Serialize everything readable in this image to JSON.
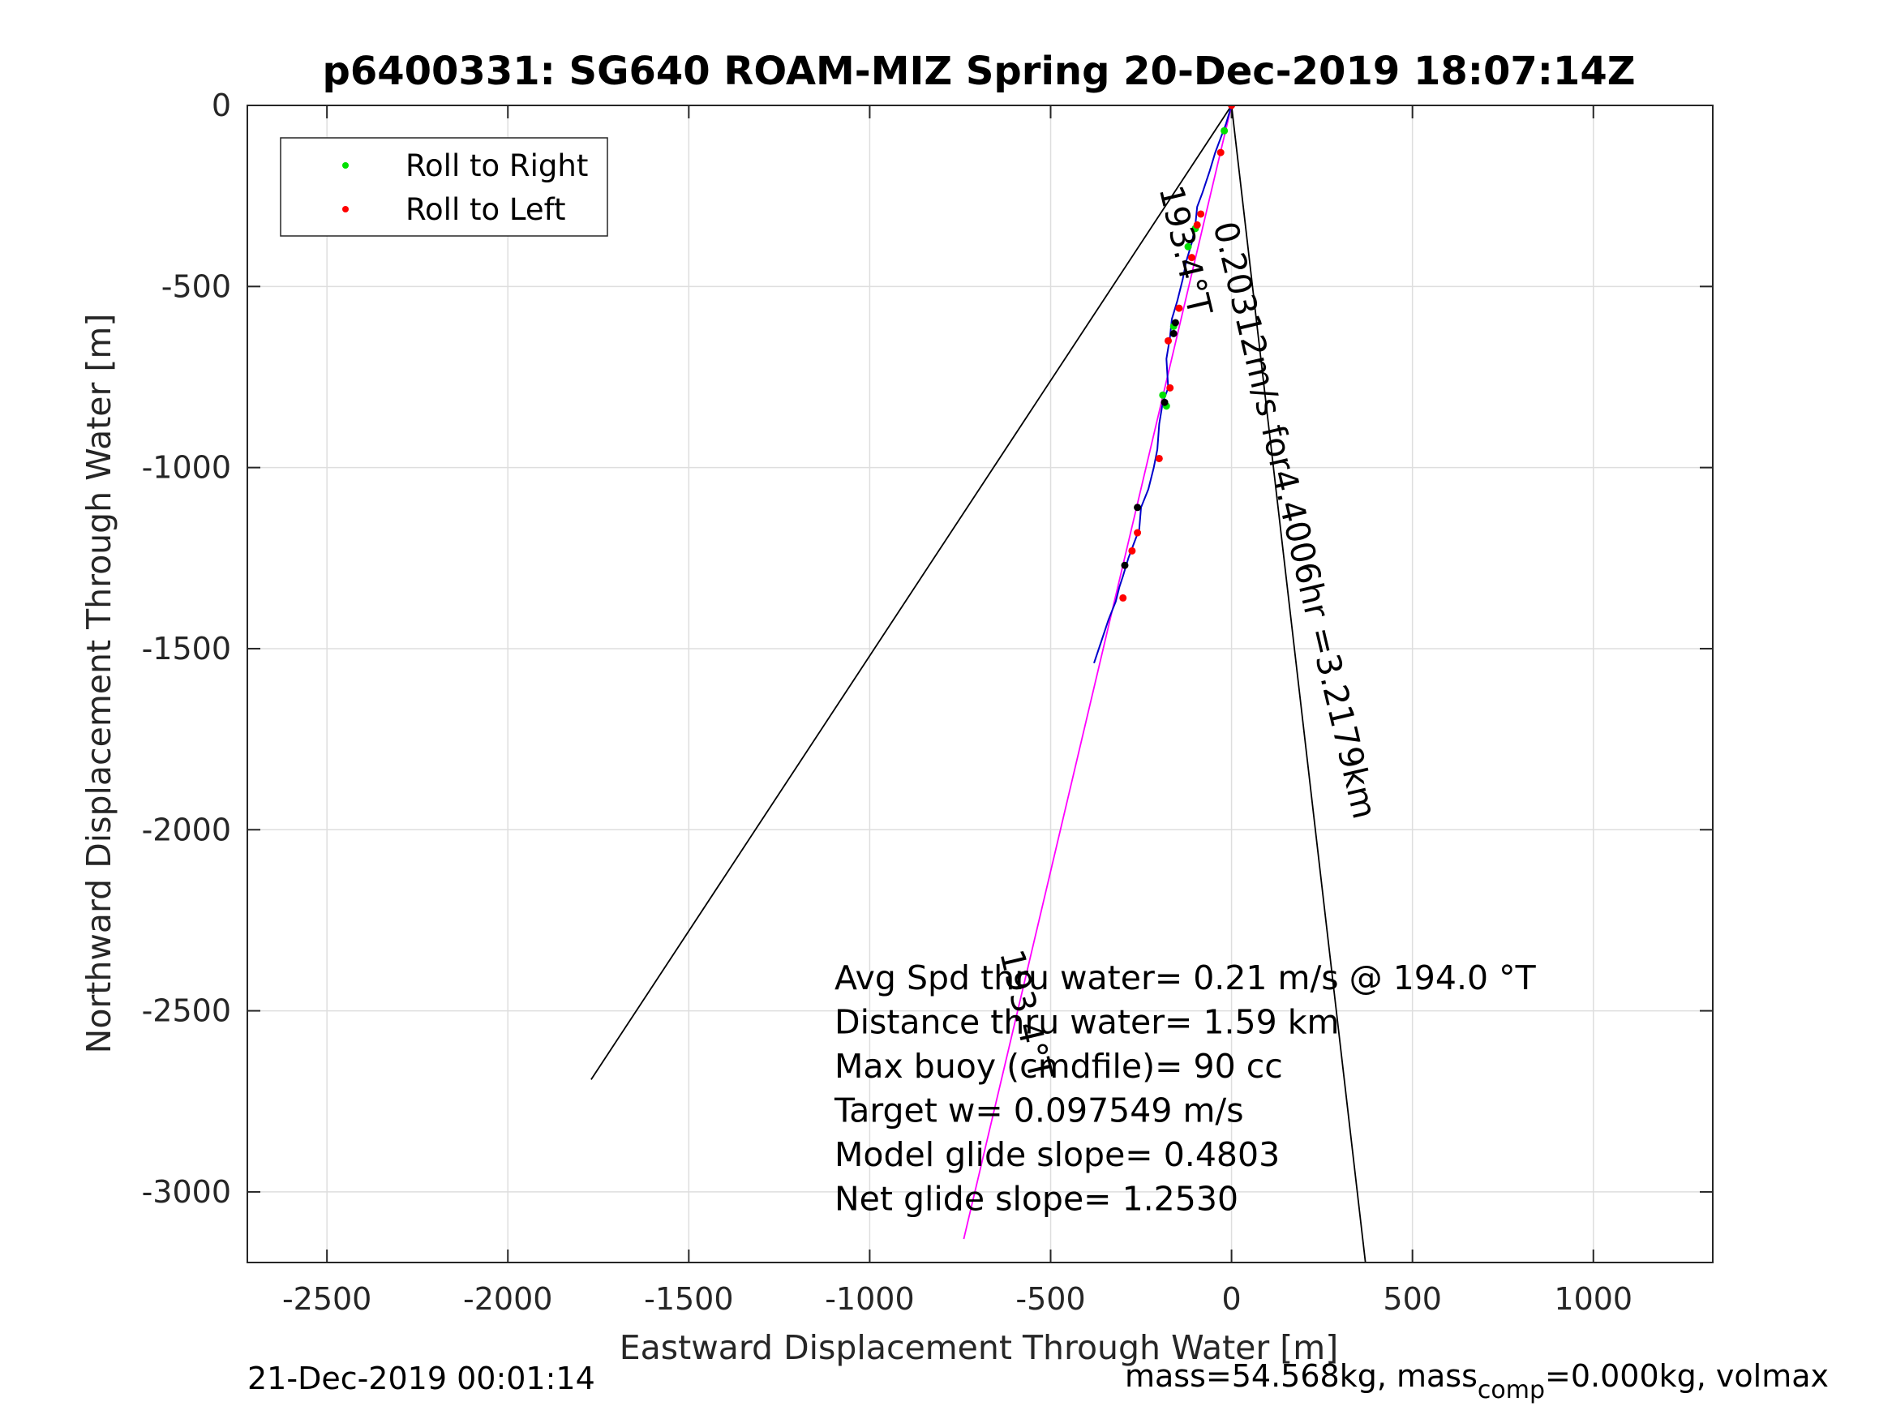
{
  "chart_data": {
    "type": "line",
    "title": "p6400331: SG640 ROAM-MIZ Spring 20-Dec-2019 18:07:14Z",
    "xlabel": "Eastward Displacement Through Water [m]",
    "ylabel": "Northward Displacement Through Water [m]",
    "xlim": [
      -2720,
      1330
    ],
    "ylim": [
      -3195,
      0
    ],
    "xticks": [
      -2500,
      -2000,
      -1500,
      -1000,
      -500,
      0,
      500,
      1000
    ],
    "yticks": [
      0,
      -500,
      -1000,
      -1500,
      -2000,
      -2500,
      -3000
    ],
    "grid": true,
    "legend": {
      "placement": "top-left",
      "entries": [
        {
          "label": "Roll to Right",
          "color": "#00e000"
        },
        {
          "label": "Roll to Left",
          "color": "#ff0000"
        }
      ]
    },
    "series": [
      {
        "kind": "cone-left",
        "color": "#000000",
        "x": [
          0,
          -1770
        ],
        "y": [
          0,
          -2690
        ]
      },
      {
        "kind": "cone-right",
        "color": "#000000",
        "x": [
          0,
          370
        ],
        "y": [
          0,
          -3195
        ]
      },
      {
        "kind": "heading-line",
        "color": "#ff00ff",
        "x": [
          0,
          -740
        ],
        "y": [
          0,
          -3130
        ]
      },
      {
        "kind": "track",
        "color": "#0000cc",
        "x": [
          0,
          -15,
          -30,
          -45,
          -60,
          -80,
          -95,
          -100,
          -110,
          -125,
          -135,
          -150,
          -165,
          -170,
          -180,
          -175,
          -190,
          -200,
          -205,
          -215,
          -230,
          -250,
          -255,
          -270,
          -285,
          -300,
          -310,
          -320,
          -340,
          -360,
          -380
        ],
        "y": [
          0,
          -50,
          -90,
          -130,
          -180,
          -240,
          -280,
          -330,
          -380,
          -430,
          -480,
          -540,
          -590,
          -640,
          -700,
          -780,
          -820,
          -880,
          -950,
          -1000,
          -1060,
          -1110,
          -1170,
          -1210,
          -1250,
          -1300,
          -1330,
          -1370,
          -1420,
          -1480,
          -1540
        ]
      },
      {
        "kind": "roll-right-points",
        "color": "#00e000",
        "x": [
          -20,
          -100,
          -120,
          -160,
          -190,
          -180
        ],
        "y": [
          -70,
          -340,
          -390,
          -610,
          -800,
          -830
        ]
      },
      {
        "kind": "roll-left-points",
        "color": "#ff0000",
        "x": [
          0,
          -30,
          -85,
          -95,
          -110,
          -145,
          -175,
          -170,
          -200,
          -260,
          -275,
          -300
        ],
        "y": [
          0,
          -130,
          -300,
          -330,
          -420,
          -560,
          -650,
          -780,
          -975,
          -1180,
          -1230,
          -1360
        ]
      },
      {
        "kind": "dark-points",
        "color": "#000000",
        "x": [
          -155,
          -160,
          -185,
          -260,
          -295
        ],
        "y": [
          -600,
          -630,
          -820,
          -1110,
          -1270
        ]
      }
    ],
    "annotations": {
      "heading_label_top": {
        "text": "193.4°T",
        "x": -200,
        "y": -230,
        "rotation": 76.7
      },
      "speed_label": {
        "text": "0.20312m/s for4.4006hr =3.2179km",
        "x": -50,
        "y": -330,
        "rotation": 76.7
      },
      "heading_label_bottom": {
        "text": "193.4°T",
        "x": -640,
        "y": -2340,
        "rotation": 76.7
      },
      "stats": [
        "Avg Spd thru water=  0.21 m/s @ 194.0 °T",
        "Distance thru water=  1.59 km",
        "Max buoy (cmdfile)= 90 cc",
        "Target w= 0.097549 m/s",
        "Model glide slope= 0.4803",
        "Net glide slope= 1.2530"
      ]
    }
  },
  "footer": {
    "timestamp": "21-Dec-2019 00:01:14",
    "mass_prefix": "mass=54.568kg, mass",
    "mass_subscript": "comp",
    "mass_suffix": "=0.000kg, volmax"
  }
}
